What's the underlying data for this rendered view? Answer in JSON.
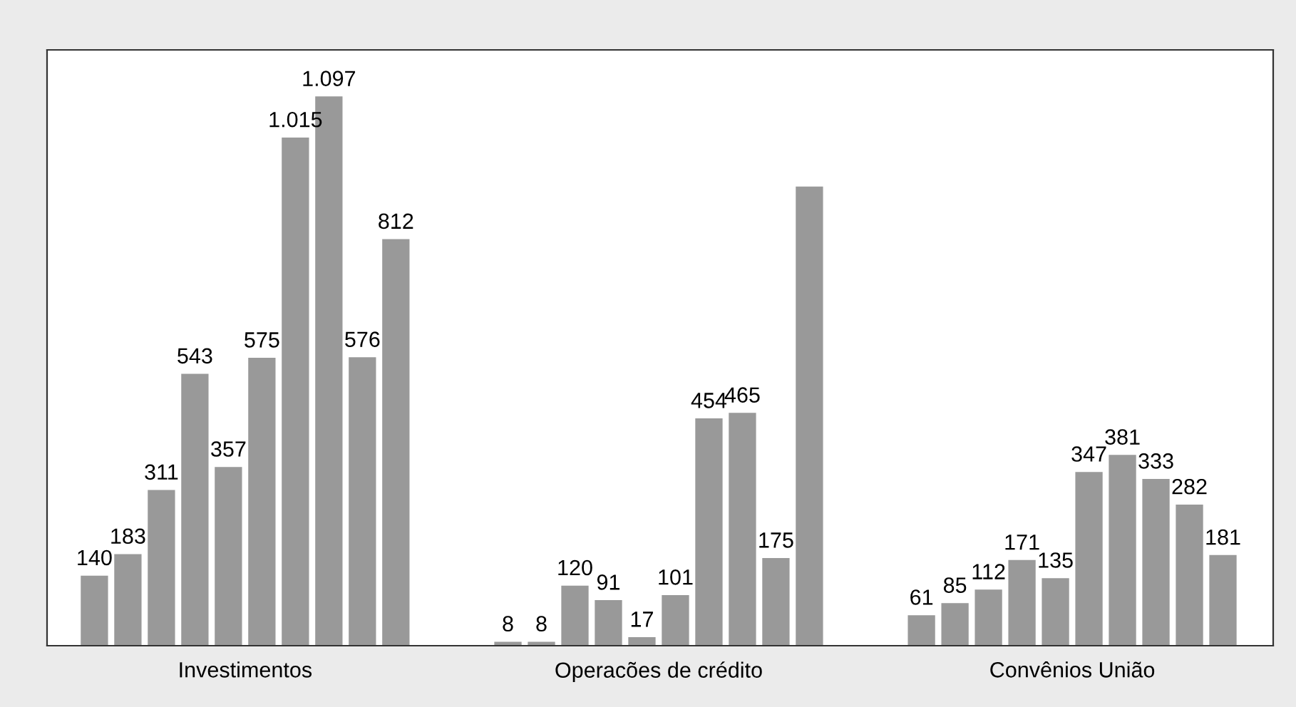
{
  "chart_data": {
    "type": "bar",
    "categories": [
      "Investimentos",
      "Operacões de crédito",
      "Convênios União"
    ],
    "ylim": [
      0,
      1190
    ],
    "tick_labels": "x",
    "grid": false,
    "legend": false,
    "series": [
      {
        "color": "#999999",
        "values": [
          140,
          8,
          61
        ],
        "value_labels": [
          "140",
          "8",
          "61"
        ]
      },
      {
        "color": "#999999",
        "values": [
          183,
          8,
          85
        ],
        "value_labels": [
          "183",
          "8",
          "85"
        ]
      },
      {
        "color": "#999999",
        "values": [
          311,
          120,
          112
        ],
        "value_labels": [
          "311",
          "120",
          "112"
        ]
      },
      {
        "color": "#999999",
        "values": [
          543,
          91,
          171
        ],
        "value_labels": [
          "543",
          "91",
          "171"
        ]
      },
      {
        "color": "#999999",
        "values": [
          357,
          17,
          135
        ],
        "value_labels": [
          "357",
          "17",
          "135"
        ]
      },
      {
        "color": "#999999",
        "values": [
          575,
          101,
          347
        ],
        "value_labels": [
          "575",
          "101",
          "347"
        ]
      },
      {
        "color": "#999999",
        "values": [
          1015,
          454,
          381
        ],
        "value_labels": [
          "1.015",
          "454",
          "381"
        ]
      },
      {
        "color": "#999999",
        "values": [
          1097,
          465,
          333
        ],
        "value_labels": [
          "1.097",
          "465",
          "333"
        ]
      },
      {
        "color": "#999999",
        "values": [
          576,
          175,
          282
        ],
        "value_labels": [
          "576",
          "175",
          "282"
        ]
      },
      {
        "color": "#999999",
        "values": [
          812,
          917,
          181
        ],
        "value_labels": [
          "812",
          null,
          "181"
        ]
      }
    ]
  }
}
